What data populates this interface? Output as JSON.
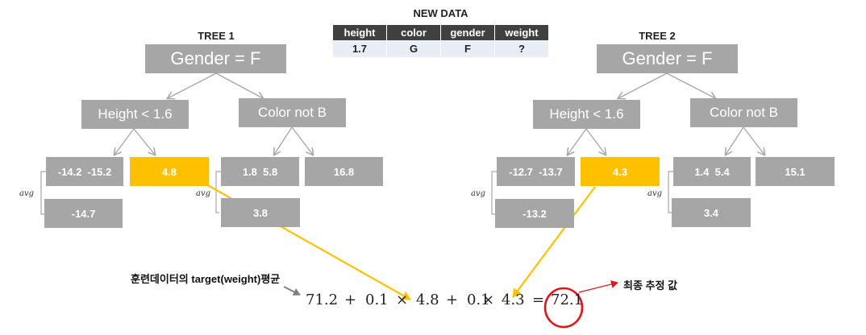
{
  "new_data": {
    "title": "NEW DATA",
    "headers": [
      "height",
      "color",
      "gender",
      "weight"
    ],
    "values": [
      "1.7",
      "G",
      "F",
      "?"
    ]
  },
  "tree1": {
    "title": "TREE 1",
    "root": "Gender = F",
    "left_split": "Height < 1.6",
    "right_split": "Color not B",
    "leaf_ll": "-14.2  -15.2",
    "leaf_ll_avg": "-14.7",
    "leaf_lr": "4.8",
    "leaf_rl": "1.8  5.8",
    "leaf_rl_avg": "3.8",
    "leaf_rr": "16.8",
    "avg_label": "avg"
  },
  "tree2": {
    "title": "TREE 2",
    "root": "Gender = F",
    "left_split": "Height < 1.6",
    "right_split": "Color not B",
    "leaf_ll": "-12.7  -13.7",
    "leaf_ll_avg": "-13.2",
    "leaf_lr": "4.3",
    "leaf_rl": "1.4  5.4",
    "leaf_rl_avg": "3.4",
    "leaf_rr": "15.1",
    "avg_label": "avg"
  },
  "formula": {
    "base": "71.2",
    "lr1": "0.1",
    "pred1": "4.8",
    "lr2": "0.1",
    "pred2": "4.3",
    "result": "72.1",
    "plus": "+",
    "times": "×",
    "equals": "="
  },
  "annotations": {
    "mean_note": "훈련데이터의 target(weight)평균",
    "final_note": "최종 추정 값"
  },
  "colors": {
    "node": "#a6a6a6",
    "highlight": "#ffc000",
    "circle": "#e0161b",
    "header": "#404040",
    "cell": "#e8edf6"
  }
}
